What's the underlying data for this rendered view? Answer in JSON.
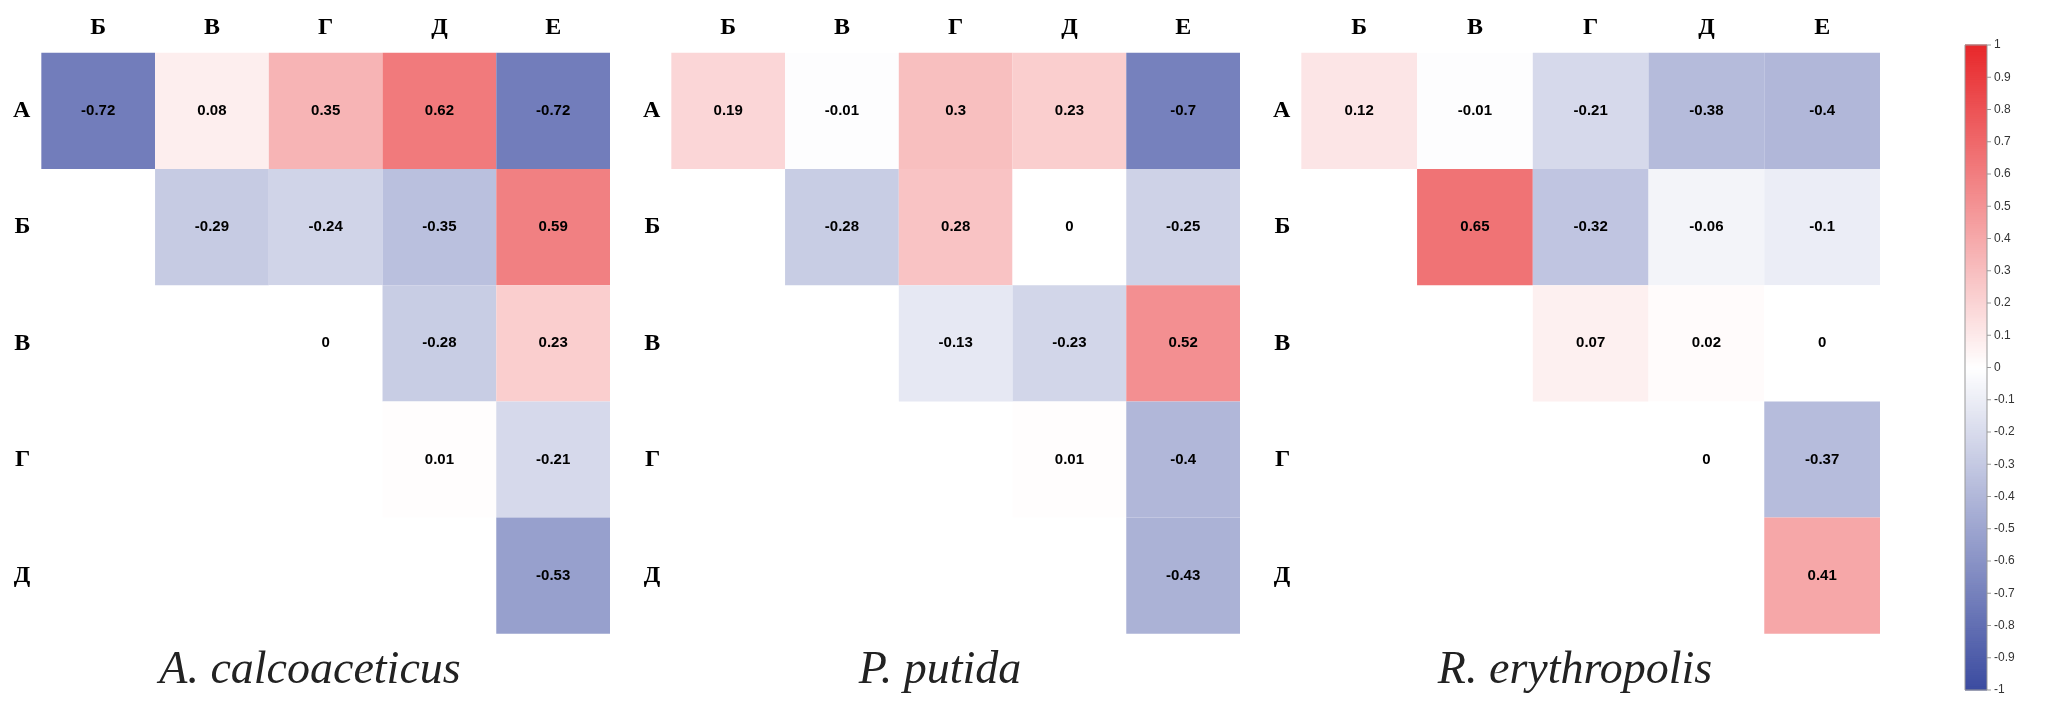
{
  "chart_data": [
    {
      "type": "heatmap",
      "data_labels": true,
      "title": "A. calcoaceticus",
      "categories": [
        "Б",
        "В",
        "Г",
        "Д",
        "Е"
      ],
      "y_categories": [
        "А",
        "Б",
        "В",
        "Г",
        "Д"
      ],
      "cells": [
        [
          -0.72,
          0.08,
          0.35,
          0.62,
          -0.72
        ],
        [
          null,
          -0.29,
          -0.24,
          -0.35,
          0.59
        ],
        [
          null,
          null,
          0,
          -0.28,
          0.23
        ],
        [
          null,
          null,
          null,
          0.01,
          -0.21
        ],
        [
          null,
          null,
          null,
          null,
          -0.53
        ]
      ]
    },
    {
      "type": "heatmap",
      "data_labels": true,
      "title": "P. putida",
      "categories": [
        "Б",
        "В",
        "Г",
        "Д",
        "Е"
      ],
      "y_categories": [
        "А",
        "Б",
        "В",
        "Г",
        "Д"
      ],
      "cells": [
        [
          0.19,
          -0.01,
          0.3,
          0.23,
          -0.7
        ],
        [
          null,
          -0.28,
          0.28,
          0,
          -0.25
        ],
        [
          null,
          null,
          -0.13,
          -0.23,
          0.52
        ],
        [
          null,
          null,
          null,
          0.01,
          -0.4
        ],
        [
          null,
          null,
          null,
          null,
          -0.43
        ]
      ]
    },
    {
      "type": "heatmap",
      "data_labels": true,
      "title": "R. erythropolis",
      "categories": [
        "Б",
        "В",
        "Г",
        "Д",
        "Е"
      ],
      "y_categories": [
        "А",
        "Б",
        "В",
        "Г",
        "Д"
      ],
      "clim": [
        -1,
        1
      ],
      "cticks": [
        -1,
        -0.9,
        -0.8,
        -0.7,
        -0.6,
        -0.5,
        -0.4,
        -0.3,
        -0.2,
        -0.1,
        0,
        0.1,
        0.2,
        0.3,
        0.4,
        0.5,
        0.6,
        0.7,
        0.8,
        0.9,
        1
      ],
      "cells": [
        [
          0.12,
          -0.01,
          -0.21,
          -0.38,
          -0.4
        ],
        [
          null,
          0.65,
          -0.32,
          -0.06,
          -0.1
        ],
        [
          null,
          null,
          0.07,
          0.02,
          0
        ],
        [
          null,
          null,
          null,
          0,
          -0.37
        ],
        [
          null,
          null,
          null,
          null,
          0.41
        ]
      ]
    }
  ]
}
